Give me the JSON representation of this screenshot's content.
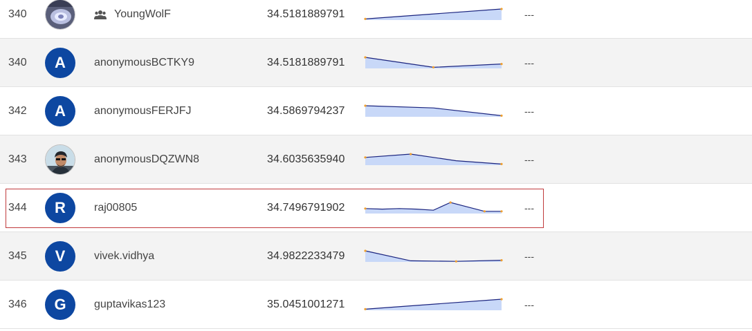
{
  "leaderboard": {
    "rows": [
      {
        "rank": "340",
        "avatar_type": "image",
        "avatar_icon": "device-photo-avatar",
        "team": true,
        "team_icon": "team-people-icon",
        "name": "YoungWolF",
        "score": "34.5181889791",
        "trend": [
          0.9,
          0.0
        ],
        "change": "---"
      },
      {
        "rank": "340",
        "avatar_type": "letter",
        "avatar_letter": "A",
        "team": false,
        "name": "anonymousBCTKY9",
        "score": "34.5181889791",
        "trend": [
          0.0,
          0.9,
          0.6
        ],
        "change": "---"
      },
      {
        "rank": "342",
        "avatar_type": "letter",
        "avatar_letter": "A",
        "team": false,
        "name": "anonymousFERJFJ",
        "score": "34.5869794237",
        "trend": [
          0.0,
          0.2,
          0.9
        ],
        "change": "---"
      },
      {
        "rank": "343",
        "avatar_type": "image",
        "avatar_icon": "person-photo-avatar",
        "team": false,
        "name": "anonymousDQZWN8",
        "score": "34.6035635940",
        "trend": [
          0.3,
          0.0,
          0.6,
          0.9
        ],
        "change": "---"
      },
      {
        "rank": "344",
        "avatar_type": "letter",
        "avatar_letter": "R",
        "team": false,
        "name": "raj00805",
        "score": "34.7496791902",
        "trend": [
          0.55,
          0.6,
          0.55,
          0.6,
          0.7,
          0.0,
          0.4,
          0.8,
          0.8
        ],
        "change": "---",
        "highlighted": true
      },
      {
        "rank": "345",
        "avatar_type": "letter",
        "avatar_letter": "V",
        "team": false,
        "name": "vivek.vidhya",
        "score": "34.9822233479",
        "trend": [
          0.0,
          0.9,
          0.95,
          0.85
        ],
        "change": "---"
      },
      {
        "rank": "346",
        "avatar_type": "letter",
        "avatar_letter": "G",
        "team": false,
        "name": "guptavikas123",
        "score": "35.0451001271",
        "trend": [
          0.9,
          0.0
        ],
        "change": "---"
      }
    ]
  },
  "colors": {
    "avatar_bg": "#0d47a1",
    "spark_line": "#1a237e",
    "spark_fill": "#c8d8f8",
    "spark_point": "#f0a030",
    "row_grey": "#f3f3f3",
    "highlight_border": "#c0393b"
  }
}
